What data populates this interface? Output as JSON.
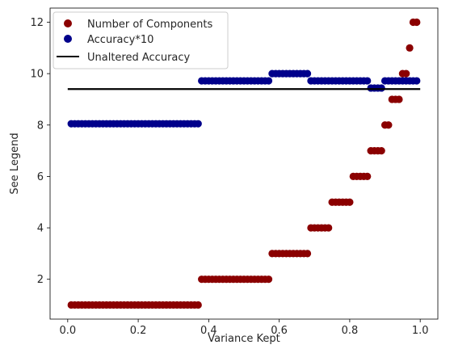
{
  "chart_data": {
    "type": "scatter",
    "xlabel": "Variance Kept",
    "ylabel": "See Legend",
    "xlim": [
      -0.05,
      1.05
    ],
    "ylim": [
      0.45,
      12.55
    ],
    "xticks": [
      0.0,
      0.2,
      0.4,
      0.6,
      0.8,
      1.0
    ],
    "xtick_labels": [
      "0.0",
      "0.2",
      "0.4",
      "0.6",
      "0.8",
      "1.0"
    ],
    "yticks": [
      2,
      4,
      6,
      8,
      10,
      12
    ],
    "ytick_labels": [
      "2",
      "4",
      "6",
      "8",
      "10",
      "12"
    ],
    "legend_position": "upper-left",
    "series": [
      {
        "name": "Number of Components",
        "kind": "scatter",
        "color": "#8b0000",
        "segments": [
          {
            "x_start": 0.01,
            "x_end": 0.37,
            "y": 1
          },
          {
            "x_start": 0.38,
            "x_end": 0.57,
            "y": 2
          },
          {
            "x_start": 0.58,
            "x_end": 0.68,
            "y": 3
          },
          {
            "x_start": 0.69,
            "x_end": 0.74,
            "y": 4
          },
          {
            "x_start": 0.75,
            "x_end": 0.8,
            "y": 5
          },
          {
            "x_start": 0.81,
            "x_end": 0.85,
            "y": 6
          },
          {
            "x_start": 0.86,
            "x_end": 0.89,
            "y": 7
          },
          {
            "x_start": 0.9,
            "x_end": 0.91,
            "y": 8
          },
          {
            "x_start": 0.92,
            "x_end": 0.94,
            "y": 9
          },
          {
            "x_start": 0.95,
            "x_end": 0.96,
            "y": 10
          },
          {
            "x_start": 0.97,
            "x_end": 0.97,
            "y": 11
          },
          {
            "x_start": 0.98,
            "x_end": 0.99,
            "y": 12
          }
        ]
      },
      {
        "name": "Accuracy*10",
        "kind": "scatter",
        "color": "#00008b",
        "segments": [
          {
            "x_start": 0.01,
            "x_end": 0.37,
            "y": 8.05
          },
          {
            "x_start": 0.38,
            "x_end": 0.57,
            "y": 9.72
          },
          {
            "x_start": 0.58,
            "x_end": 0.68,
            "y": 10.0
          },
          {
            "x_start": 0.69,
            "x_end": 0.85,
            "y": 9.72
          },
          {
            "x_start": 0.86,
            "x_end": 0.89,
            "y": 9.44
          },
          {
            "x_start": 0.9,
            "x_end": 0.99,
            "y": 9.72
          }
        ]
      },
      {
        "name": "Unaltered Accuracy",
        "kind": "line",
        "color": "#000000",
        "x": [
          0.0,
          1.0
        ],
        "values": [
          9.4,
          9.4
        ]
      }
    ]
  }
}
